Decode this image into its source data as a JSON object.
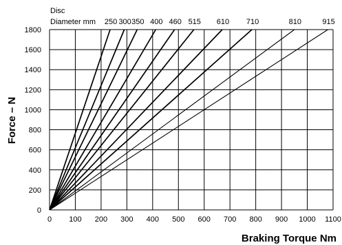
{
  "chart_data": {
    "type": "line",
    "title": "",
    "xlabel": "Braking Torque Nm",
    "ylabel": "Force – N",
    "legend_title_line1": "Disc",
    "legend_title_line2": "Diameter mm",
    "xlim": [
      0,
      1100
    ],
    "ylim": [
      0,
      1800
    ],
    "x_ticks": [
      "0",
      "100",
      "200",
      "300",
      "400",
      "500",
      "600",
      "700",
      "800",
      "900",
      "1000",
      "1100"
    ],
    "y_ticks": [
      "0",
      "200",
      "400",
      "600",
      "800",
      "1000",
      "1200",
      "1400",
      "1600",
      "1800"
    ],
    "grid": true,
    "series": [
      {
        "name": "250",
        "x": [
          0,
          235
        ],
        "y": [
          0,
          1800
        ]
      },
      {
        "name": "300",
        "x": [
          0,
          290
        ],
        "y": [
          0,
          1800
        ]
      },
      {
        "name": "350",
        "x": [
          0,
          340
        ],
        "y": [
          0,
          1800
        ]
      },
      {
        "name": "400",
        "x": [
          0,
          412
        ],
        "y": [
          0,
          1800
        ]
      },
      {
        "name": "460",
        "x": [
          0,
          485
        ],
        "y": [
          0,
          1800
        ]
      },
      {
        "name": "515",
        "x": [
          0,
          560
        ],
        "y": [
          0,
          1800
        ]
      },
      {
        "name": "610",
        "x": [
          0,
          670
        ],
        "y": [
          0,
          1800
        ]
      },
      {
        "name": "710",
        "x": [
          0,
          785
        ],
        "y": [
          0,
          1800
        ]
      },
      {
        "name": "810",
        "x": [
          0,
          950
        ],
        "y": [
          0,
          1800
        ]
      },
      {
        "name": "915",
        "x": [
          0,
          1080
        ],
        "y": [
          0,
          1800
        ]
      }
    ]
  }
}
